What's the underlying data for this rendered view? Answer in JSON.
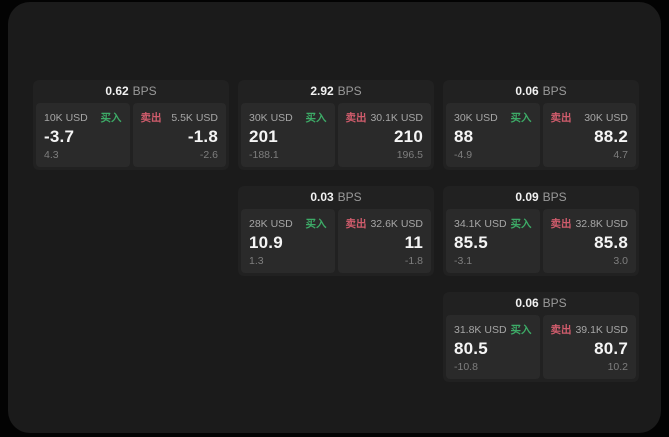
{
  "labels": {
    "bps": "BPS",
    "buy": "买入",
    "sell": "卖出"
  },
  "colors": {
    "buy": "#3dab67",
    "sell": "#d05c6c",
    "panel_bg": "#1b1b1b",
    "card_bg": "#212121",
    "tile_bg": "#2a2a2a"
  },
  "cards": [
    {
      "spread": "0.62",
      "buy": {
        "amount": "10K USD",
        "price": "-3.7",
        "delta": "4.3"
      },
      "sell": {
        "amount": "5.5K USD",
        "price": "-1.8",
        "delta": "-2.6"
      }
    },
    {
      "spread": "2.92",
      "buy": {
        "amount": "30K USD",
        "price": "201",
        "delta": "-188.1"
      },
      "sell": {
        "amount": "30.1K USD",
        "price": "210",
        "delta": "196.5"
      }
    },
    {
      "spread": "0.06",
      "buy": {
        "amount": "30K USD",
        "price": "88",
        "delta": "-4.9"
      },
      "sell": {
        "amount": "30K USD",
        "price": "88.2",
        "delta": "4.7"
      }
    },
    {
      "spread": "0.03",
      "buy": {
        "amount": "28K USD",
        "price": "10.9",
        "delta": "1.3"
      },
      "sell": {
        "amount": "32.6K USD",
        "price": "11",
        "delta": "-1.8"
      }
    },
    {
      "spread": "0.09",
      "buy": {
        "amount": "34.1K USD",
        "price": "85.5",
        "delta": "-3.1"
      },
      "sell": {
        "amount": "32.8K USD",
        "price": "85.8",
        "delta": "3.0"
      }
    },
    {
      "spread": "0.06",
      "buy": {
        "amount": "31.8K USD",
        "price": "80.5",
        "delta": "-10.8"
      },
      "sell": {
        "amount": "39.1K USD",
        "price": "80.7",
        "delta": "10.2"
      }
    }
  ]
}
